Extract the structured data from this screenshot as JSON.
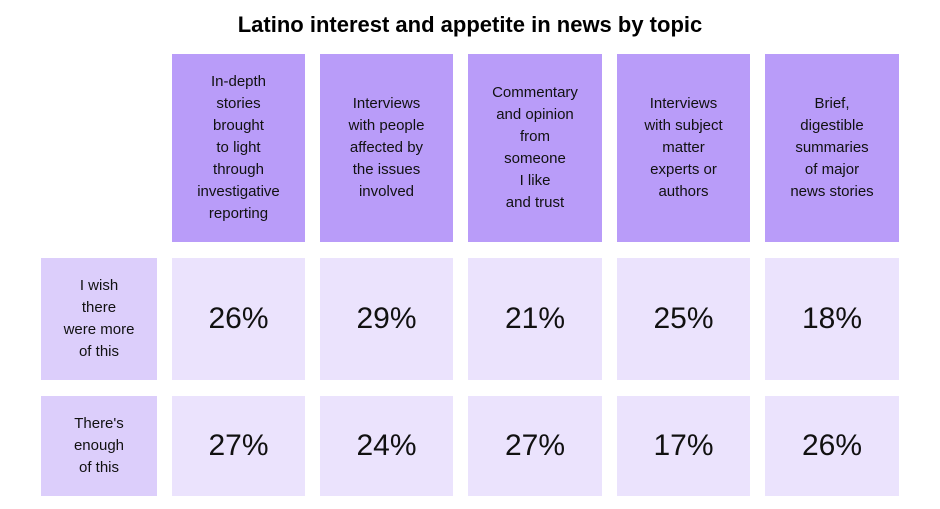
{
  "chart_data": {
    "type": "table",
    "title": "Latino interest and appetite in news by topic",
    "columns": [
      "In-depth\nstories\nbrought\nto light\nthrough\ninvestigative\nreporting",
      "Interviews\nwith people\naffected by\nthe issues\ninvolved",
      "Commentary\nand opinion\nfrom\nsomeone\nI like\nand trust",
      "Interviews\nwith subject\nmatter\nexperts or\nauthors",
      "Brief,\ndigestible\nsummaries\nof major\nnews stories"
    ],
    "rows": [
      {
        "label": "I wish\nthere\nwere more\nof this",
        "values": [
          26,
          29,
          21,
          25,
          18
        ],
        "display": [
          "26%",
          "29%",
          "21%",
          "25%",
          "18%"
        ]
      },
      {
        "label": "There's\nenough\nof this",
        "values": [
          27,
          24,
          27,
          17,
          26
        ],
        "display": [
          "27%",
          "24%",
          "27%",
          "17%",
          "26%"
        ]
      }
    ],
    "unit": "%"
  },
  "colors": {
    "header_fill": "#b99cf9",
    "row_label_fill": "#dccefb",
    "value_fill": "#ebe3fd"
  }
}
